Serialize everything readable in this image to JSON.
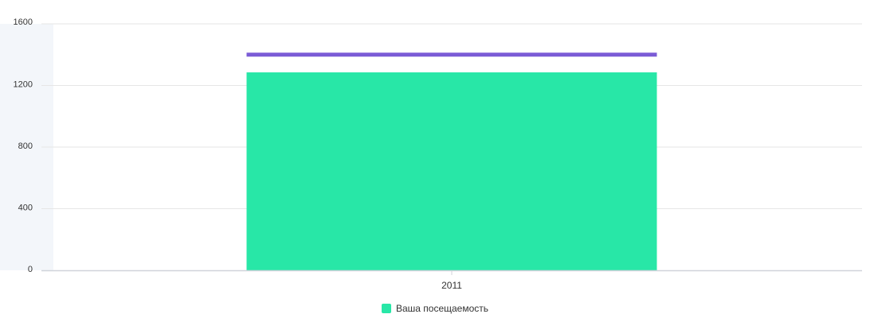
{
  "chart_data": {
    "type": "bar",
    "categories": [
      "2011"
    ],
    "series": [
      {
        "name": "Ваша посещаемость",
        "values": [
          1285
        ],
        "color": "#28e7a7"
      }
    ],
    "reference_line": {
      "value": 1400,
      "color": "#7b5cd6"
    },
    "ylim": [
      0,
      1600
    ],
    "y_ticks": [
      0,
      400,
      800,
      1200,
      1600
    ],
    "grid": true,
    "legend_position": "bottom-center",
    "title": "",
    "xlabel": "",
    "ylabel": ""
  }
}
